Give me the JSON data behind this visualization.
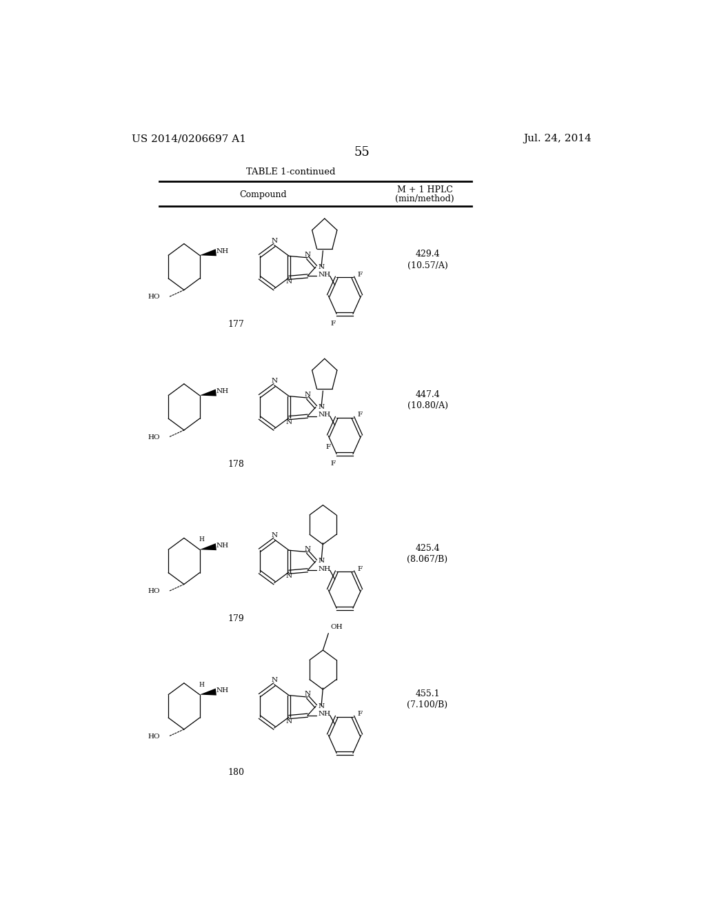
{
  "background_color": "#ffffff",
  "page_number": "55",
  "patent_left": "US 2014/0206697 A1",
  "patent_right": "Jul. 24, 2014",
  "table_title": "TABLE 1-continued",
  "col1_header": "Compound",
  "col2_header_line1": "M + 1 HPLC",
  "col2_header_line2": "(min/method)",
  "compounds": [
    {
      "number": "177",
      "value": "429.4",
      "method": "(10.57/A)"
    },
    {
      "number": "178",
      "value": "447.4",
      "method": "(10.80/A)"
    },
    {
      "number": "179",
      "value": "425.4",
      "method": "(8.067/B)"
    },
    {
      "number": "180",
      "value": "455.1",
      "method": "(7.100/B)"
    }
  ]
}
